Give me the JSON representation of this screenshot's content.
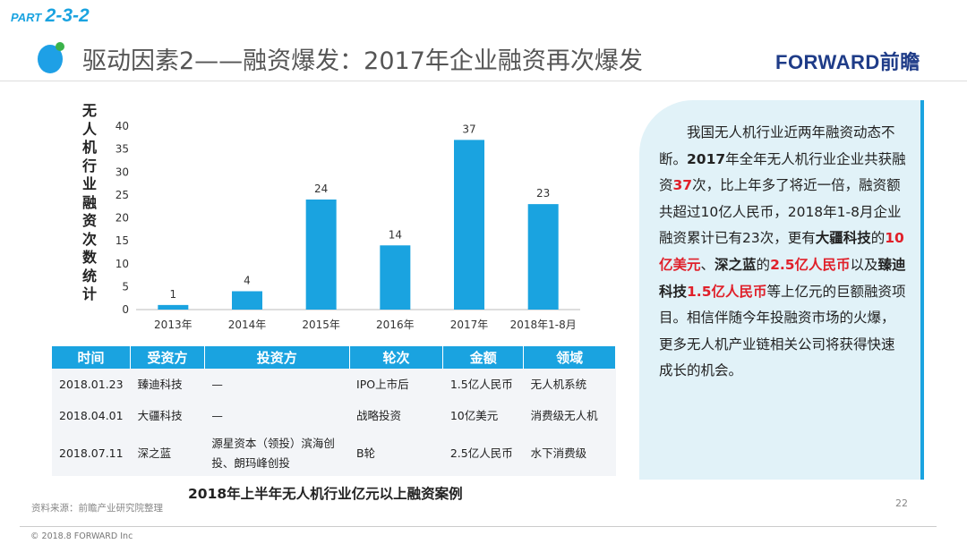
{
  "header": {
    "part_prefix": "PART",
    "part_number": "2-3-2",
    "title": "驱动因素2——融资爆发：2017年企业融资再次爆发",
    "brand": "FORWARD前瞻"
  },
  "chart_data": {
    "type": "bar",
    "categories": [
      "2013年",
      "2014年",
      "2015年",
      "2016年",
      "2017年",
      "2018年1-8月"
    ],
    "values": [
      1,
      4,
      24,
      14,
      37,
      23
    ],
    "ylabel": "无人机行业融资次数统计",
    "ylim": [
      0,
      40
    ],
    "yticks": [
      0,
      5,
      10,
      15,
      20,
      25,
      30,
      35,
      40
    ],
    "grid": false,
    "color": "#1aa3e0"
  },
  "panel": {
    "paragraph": [
      {
        "t": "　　我国无人机行业近两年融资动态不断。"
      },
      {
        "t": "2017",
        "s": "b"
      },
      {
        "t": "年全年无人机行业企业共获融资"
      },
      {
        "t": "37",
        "s": "r"
      },
      {
        "t": "次，比上年多了将近一倍，融资额共超过10亿人民币，2018年1-8月企业融资累计已有23次，更有"
      },
      {
        "t": "大疆科技",
        "s": "b"
      },
      {
        "t": "的"
      },
      {
        "t": "10亿美元",
        "s": "r"
      },
      {
        "t": "、"
      },
      {
        "t": "深之蓝",
        "s": "b"
      },
      {
        "t": "的"
      },
      {
        "t": "2.5亿人民币",
        "s": "r"
      },
      {
        "t": "以及"
      },
      {
        "t": "臻迪科技",
        "s": "b"
      },
      {
        "t": "1.5亿人民币",
        "s": "r"
      },
      {
        "t": "等上亿元的巨额融资项目。相信伴随今年投融资市场的火爆，更多无人机产业链相关公司将获得快速成长的机会。"
      }
    ]
  },
  "table": {
    "headers": [
      "时间",
      "受资方",
      "投资方",
      "轮次",
      "金额",
      "领域"
    ],
    "rows": [
      [
        "2018.01.23",
        "臻迪科技",
        "—",
        "IPO上市后",
        "1.5亿人民币",
        "无人机系统"
      ],
      [
        "2018.04.01",
        "大疆科技",
        "—",
        "战略投资",
        "10亿美元",
        "消费级无人机"
      ],
      [
        "2018.07.11",
        "深之蓝",
        "源星资本（领投）滨海创投、朗玛峰创投",
        "B轮",
        "2.5亿人民币",
        "水下消费级"
      ]
    ],
    "caption": "2018年上半年无人机行业亿元以上融资案例"
  },
  "footer": {
    "source": "资料来源：前瞻产业研究院整理",
    "page": "22",
    "copyright": "© 2018.8 FORWARD Inc"
  }
}
